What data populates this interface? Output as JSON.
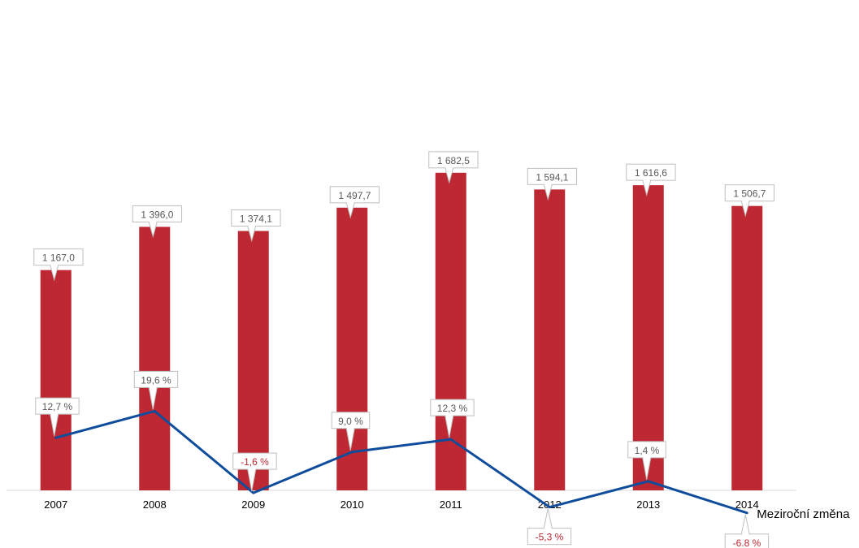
{
  "chart_data": {
    "type": "bar",
    "categories": [
      "2007",
      "2008",
      "2009",
      "2010",
      "2011",
      "2012",
      "2013",
      "2014"
    ],
    "series": [
      {
        "type": "bar",
        "values": [
          1167.0,
          1396.0,
          1374.1,
          1497.7,
          1682.5,
          1594.1,
          1616.6,
          1506.7
        ],
        "labels": [
          "1 167,0",
          "1 396,0",
          "1 374,1",
          "1 497,7",
          "1 682,5",
          "1 594,1",
          "1 616,6",
          "1 506,7"
        ],
        "color": "#be2833"
      },
      {
        "type": "line",
        "name": "Meziroční změna",
        "values": [
          12.7,
          19.6,
          -1.6,
          9.0,
          12.3,
          -5.3,
          1.4,
          -6.8
        ],
        "labels": [
          "12,7 %",
          "19,6 %",
          "-1,6 %",
          "9,0 %",
          "12,3 %",
          "-5,3 %",
          "1,4 %",
          "-6.8 %"
        ],
        "color": "#0f4c9c"
      }
    ],
    "colors": {
      "positive_label": "#595959",
      "negative_label": "#be2833",
      "axis": "#d9d9d9",
      "category_label": "#000000"
    },
    "grid": false,
    "legend": "none"
  }
}
